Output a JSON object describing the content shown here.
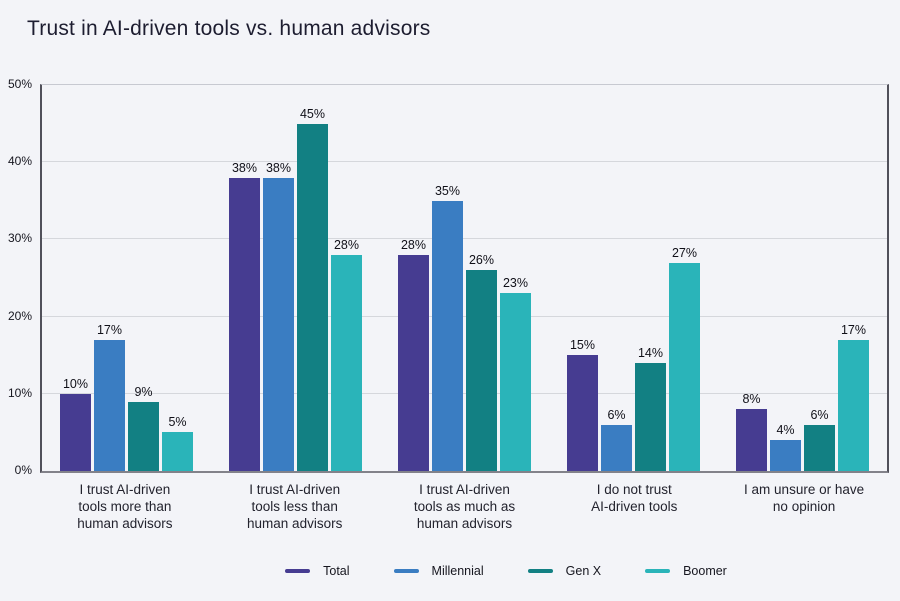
{
  "title": "Trust in AI-driven tools vs. human advisors",
  "chart_data": {
    "type": "bar",
    "title": "Trust in AI-driven tools vs. human advisors",
    "categories": [
      "I trust AI-driven tools more than human advisors",
      "I trust AI-driven tools less than human advisors",
      "I trust AI-driven tools as much as human advisors",
      "I do not trust AI-driven tools",
      "I am unsure or have no opinion"
    ],
    "category_label_lines": [
      [
        "I trust AI-driven",
        "tools more than",
        "human advisors"
      ],
      [
        "I trust AI-driven",
        "tools less than",
        "human advisors"
      ],
      [
        "I trust AI-driven",
        "tools as much as",
        "human advisors"
      ],
      [
        "I do not trust",
        "AI-driven tools"
      ],
      [
        "I am unsure or have",
        "no opinion"
      ]
    ],
    "series": [
      {
        "name": "Total",
        "color": "#463c91",
        "values": [
          10,
          38,
          28,
          15,
          8
        ]
      },
      {
        "name": "Millennial",
        "color": "#3a7dc2",
        "values": [
          17,
          38,
          35,
          6,
          4
        ]
      },
      {
        "name": "Gen X",
        "color": "#128083",
        "values": [
          9,
          45,
          26,
          14,
          6
        ]
      },
      {
        "name": "Boomer",
        "color": "#2ab4b9",
        "values": [
          5,
          28,
          23,
          27,
          17
        ]
      }
    ],
    "xlabel": "",
    "ylabel": "",
    "ylim": [
      0,
      50
    ],
    "yticks": [
      0,
      10,
      20,
      30,
      40,
      50
    ],
    "ytick_labels": [
      "0%",
      "10%",
      "20%",
      "30%",
      "40%",
      "50%"
    ],
    "value_suffix": "%",
    "grid": true,
    "legend_position": "bottom",
    "colors": {
      "background": "#f3f4f8",
      "grid_line": "#d5d7dc",
      "axis_side": "#50505a",
      "axis_bottom": "#82828a",
      "plot_top_line": "#c7c9d1",
      "title_text": "#1d1d30",
      "value_text": "#101018"
    }
  }
}
